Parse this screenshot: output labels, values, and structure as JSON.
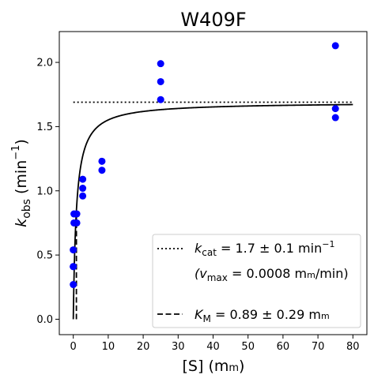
{
  "chart_data": {
    "type": "scatter",
    "title": "W409F",
    "xlabel_main": "[S] (m",
    "xlabel_unit": "m",
    "xlabel_close": ")",
    "ylabel_k": "k",
    "ylabel_sub": "obs",
    "ylabel_unit": " (min",
    "ylabel_sup": "−1",
    "ylabel_close": ")",
    "xlim": [
      -4,
      84
    ],
    "ylim": [
      -0.12,
      2.24
    ],
    "x_ticks": [
      0,
      10,
      20,
      30,
      40,
      50,
      60,
      70,
      80
    ],
    "y_ticks": [
      0.0,
      0.5,
      1.0,
      1.5,
      2.0
    ],
    "x_tick_labels": [
      "0",
      "10",
      "20",
      "30",
      "40",
      "50",
      "60",
      "70",
      "80"
    ],
    "y_tick_labels": [
      "0.0",
      "0.5",
      "1.0",
      "1.5",
      "2.0"
    ],
    "grid": false,
    "points": {
      "color": "#0000ff",
      "x": [
        0,
        0,
        0,
        0,
        0.2,
        0.2,
        1,
        1,
        2.7,
        2.7,
        2.7,
        8.2,
        8.2,
        25,
        25,
        25,
        75,
        75,
        75
      ],
      "y": [
        0.27,
        0.41,
        0.54,
        0.41,
        0.75,
        0.82,
        0.75,
        0.82,
        0.96,
        1.02,
        1.09,
        1.16,
        1.23,
        1.71,
        1.85,
        1.99,
        1.57,
        1.64,
        2.13
      ]
    },
    "fit_curve": {
      "kcat": 1.69,
      "km": 0.89,
      "x_range": [
        0,
        80
      ],
      "style": "solid"
    },
    "kcat_line": {
      "y": 1.69,
      "x_range": [
        0,
        80
      ],
      "style": "dotted"
    },
    "km_line": {
      "x": 0.89,
      "y_range": [
        0,
        0.84
      ],
      "style": "dashed"
    },
    "legend": {
      "placement": "lower-right",
      "entries": [
        {
          "style": "dotted",
          "parts": [
            "k",
            "cat",
            " = 1.7 ± 0.1 min",
            "−1"
          ],
          "second_line": [
            "(v",
            "max",
            " = 0.0008 m",
            "m",
            "/min)"
          ]
        },
        {
          "style": "dashed",
          "parts": [
            "K",
            "M",
            " = 0.89 ± 0.29 m",
            "m"
          ]
        }
      ]
    }
  }
}
